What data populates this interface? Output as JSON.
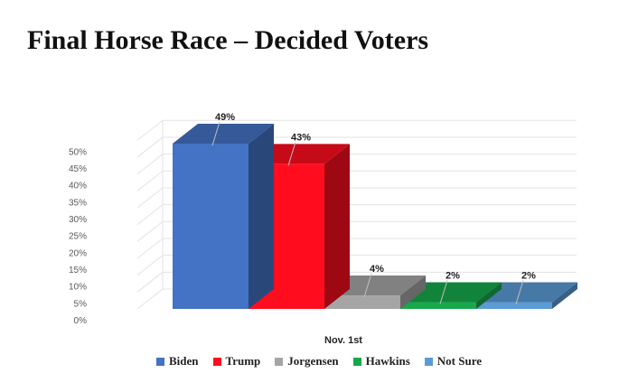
{
  "chart_data": {
    "type": "bar",
    "title": "Final Horse Race – Decided Voters",
    "categories": [
      "Nov. 1st"
    ],
    "series": [
      {
        "name": "Biden",
        "values": [
          49
        ],
        "label": "49%",
        "color": "#4472C4"
      },
      {
        "name": "Trump",
        "values": [
          43
        ],
        "label": "43%",
        "color": "#FF0D1F"
      },
      {
        "name": "Jorgensen",
        "values": [
          4
        ],
        "label": "4%",
        "color": "#A5A5A5"
      },
      {
        "name": "Hawkins",
        "values": [
          2
        ],
        "label": "2%",
        "color": "#17A84B"
      },
      {
        "name": "Not Sure",
        "values": [
          2
        ],
        "label": "2%",
        "color": "#5B9BD5"
      }
    ],
    "yticks": [
      "0%",
      "5%",
      "10%",
      "15%",
      "20%",
      "25%",
      "30%",
      "35%",
      "40%",
      "45%",
      "50%"
    ],
    "ylim": [
      0,
      50
    ],
    "grid": true,
    "legend_position": "bottom",
    "style": "3d-clustered-column"
  }
}
